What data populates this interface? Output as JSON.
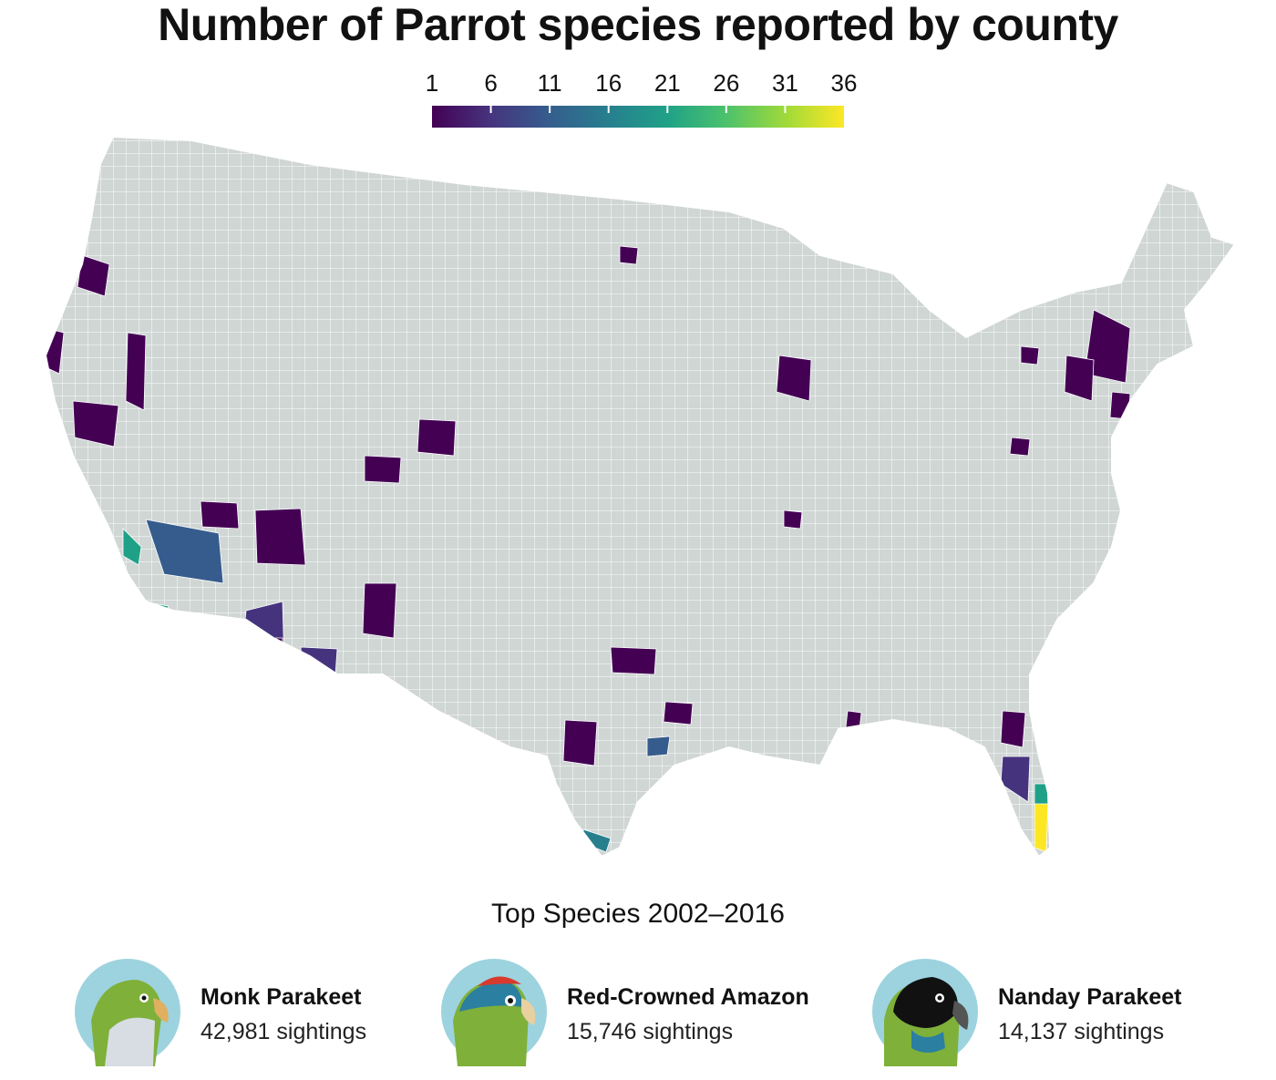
{
  "title": "Number of Parrot species reported by county",
  "legend": {
    "ticks": [
      "1",
      "6",
      "11",
      "16",
      "21",
      "26",
      "31",
      "36"
    ],
    "min": 1,
    "max": 36,
    "colors": [
      "#440154",
      "#46337e",
      "#365c8d",
      "#277f8e",
      "#1fa187",
      "#4ac16d",
      "#a0da39",
      "#fde725"
    ]
  },
  "map": {
    "base_color": "#cfd6d4",
    "border_color": "#ffffff",
    "highlight_counties": [
      {
        "region": "southern-florida-miami",
        "species": 36
      },
      {
        "region": "south-florida-broward",
        "species": 20
      },
      {
        "region": "southern-california-los-angeles",
        "species": 22
      },
      {
        "region": "southern-california-orange",
        "species": 20
      },
      {
        "region": "south-texas-cameron",
        "species": 16
      },
      {
        "region": "california-san-bernardino",
        "species": 9
      },
      {
        "region": "arizona-maricopa",
        "species": 8
      },
      {
        "region": "texas-harris",
        "species": 9
      },
      {
        "region": "florida-tampa",
        "species": 8
      }
    ]
  },
  "species_heading": "Top Species 2002–2016",
  "species": [
    {
      "name": "Monk Parakeet",
      "count": "42,981 sightings",
      "icon": "monk-parakeet-icon"
    },
    {
      "name": "Red-Crowned Amazon",
      "count": "15,746 sightings",
      "icon": "red-crowned-amazon-icon"
    },
    {
      "name": "Nanday Parakeet",
      "count": "14,137 sightings",
      "icon": "nanday-parakeet-icon"
    }
  ]
}
